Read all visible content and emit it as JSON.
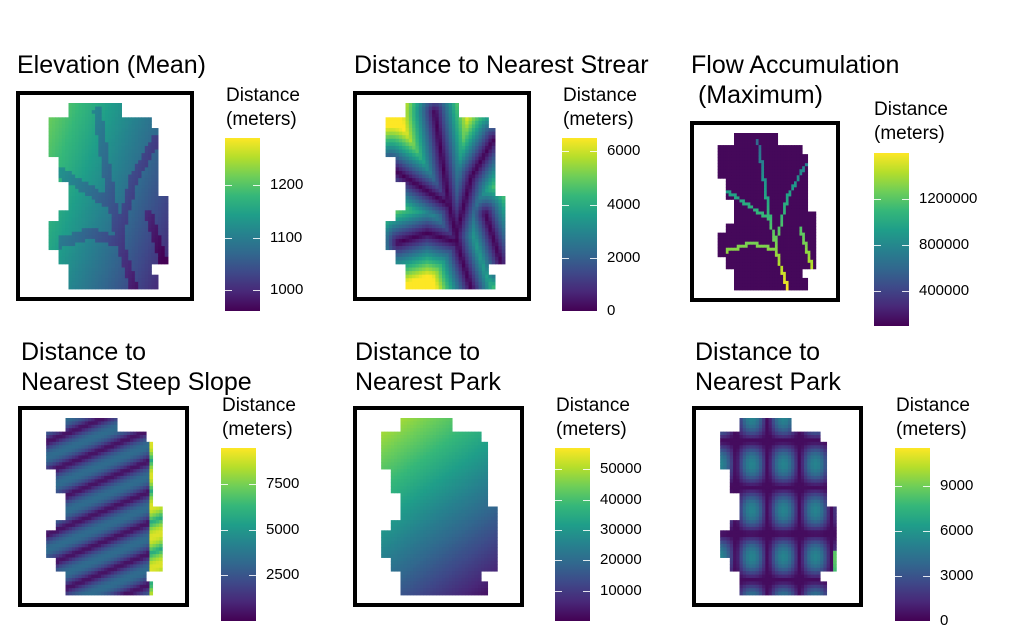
{
  "chart_data": [
    {
      "type": "heatmap",
      "title": "Elevation (Mean)",
      "legend_title": "Distance\n(meters)",
      "colormap": "viridis",
      "range": [
        960,
        1290
      ],
      "ticks": [
        1000,
        1100,
        1200
      ],
      "tick_labels": [
        "1000",
        "1100",
        "1200"
      ]
    },
    {
      "type": "heatmap",
      "title": "Distance to Nearest Strear",
      "legend_title": "Distance\n(meters)",
      "colormap": "viridis",
      "range": [
        0,
        6500
      ],
      "ticks": [
        0,
        2000,
        4000,
        6000
      ],
      "tick_labels": [
        "0",
        "2000",
        "4000",
        "6000"
      ]
    },
    {
      "type": "heatmap",
      "title": "Flow Accumulation\n (Maximum)",
      "legend_title": "Distance\n(meters)",
      "colormap": "viridis",
      "range": [
        100000,
        1600000
      ],
      "ticks": [
        400000,
        800000,
        1200000
      ],
      "tick_labels": [
        "400000",
        "800000",
        "1200000"
      ]
    },
    {
      "type": "heatmap",
      "title": "Distance to\nNearest Steep Slope",
      "legend_title": "Distance\n(meters)",
      "colormap": "viridis",
      "range": [
        0,
        9500
      ],
      "ticks": [
        2500,
        5000,
        7500
      ],
      "tick_labels": [
        "2500",
        "5000",
        "7500"
      ]
    },
    {
      "type": "heatmap",
      "title": "Distance to\nNearest Park",
      "legend_title": "Distance\n(meters)",
      "colormap": "viridis",
      "range": [
        0,
        57000
      ],
      "ticks": [
        10000,
        20000,
        30000,
        40000,
        50000
      ],
      "tick_labels": [
        "10000",
        "20000",
        "30000",
        "40000",
        "50000"
      ]
    },
    {
      "type": "heatmap",
      "title": "Distance to\nNearest Park",
      "legend_title": "Distance\n(meters)",
      "colormap": "viridis",
      "range": [
        0,
        11500
      ],
      "ticks": [
        0,
        3000,
        6000,
        9000
      ],
      "tick_labels": [
        "0",
        "3000",
        "6000",
        "9000"
      ]
    }
  ]
}
